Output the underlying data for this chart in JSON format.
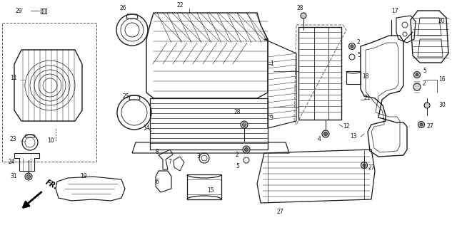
{
  "bg_color": "#f5f5f5",
  "fig_width": 6.4,
  "fig_height": 3.16,
  "dpi": 100,
  "line_color": "#1a1a1a",
  "label_color": "#111111",
  "label_fontsize": 6.0,
  "lw_main": 0.85,
  "lw_thin": 0.45,
  "lw_thick": 1.2
}
